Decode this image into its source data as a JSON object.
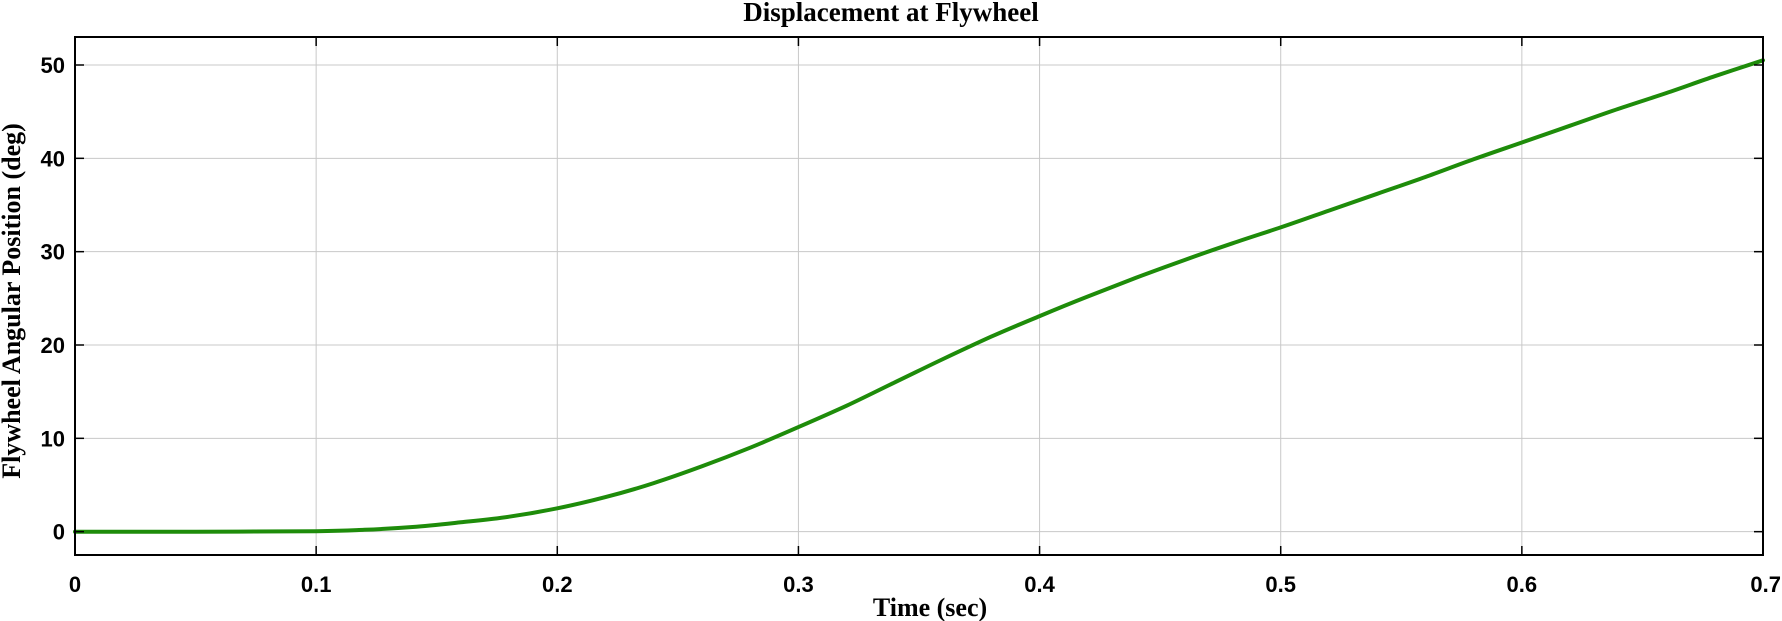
{
  "chart_data": {
    "type": "line",
    "title": "Displacement at Flywheel",
    "xlabel": "Time (sec)",
    "ylabel": "Flywheel Angular Position (deg)",
    "xlim": [
      0,
      0.7
    ],
    "ylim": [
      -2.5,
      53
    ],
    "xticks": [
      0,
      0.1,
      0.2,
      0.3,
      0.4,
      0.5,
      0.6,
      0.7
    ],
    "xtick_labels": [
      "0",
      "0.1",
      "0.2",
      "0.3",
      "0.4",
      "0.5",
      "0.6",
      "0.7"
    ],
    "yticks": [
      0,
      10,
      20,
      30,
      40,
      50
    ],
    "ytick_labels": [
      "0",
      "10",
      "20",
      "30",
      "40",
      "50"
    ],
    "grid": true,
    "legend": "none",
    "series": [
      {
        "color": "#1e8c0a",
        "x": [
          0,
          0.05,
          0.1,
          0.12,
          0.14,
          0.16,
          0.18,
          0.2,
          0.22,
          0.24,
          0.26,
          0.28,
          0.3,
          0.32,
          0.34,
          0.36,
          0.38,
          0.4,
          0.42,
          0.44,
          0.46,
          0.48,
          0.5,
          0.52,
          0.54,
          0.56,
          0.58,
          0.6,
          0.62,
          0.64,
          0.66,
          0.68,
          0.7
        ],
        "y": [
          0,
          0,
          0.05,
          0.2,
          0.5,
          1.0,
          1.6,
          2.5,
          3.7,
          5.2,
          7.0,
          9.0,
          11.2,
          13.5,
          16.0,
          18.5,
          20.9,
          23.1,
          25.2,
          27.2,
          29.1,
          30.9,
          32.6,
          34.4,
          36.2,
          38.0,
          39.9,
          41.7,
          43.5,
          45.3,
          47.0,
          48.8,
          50.5
        ]
      }
    ]
  }
}
